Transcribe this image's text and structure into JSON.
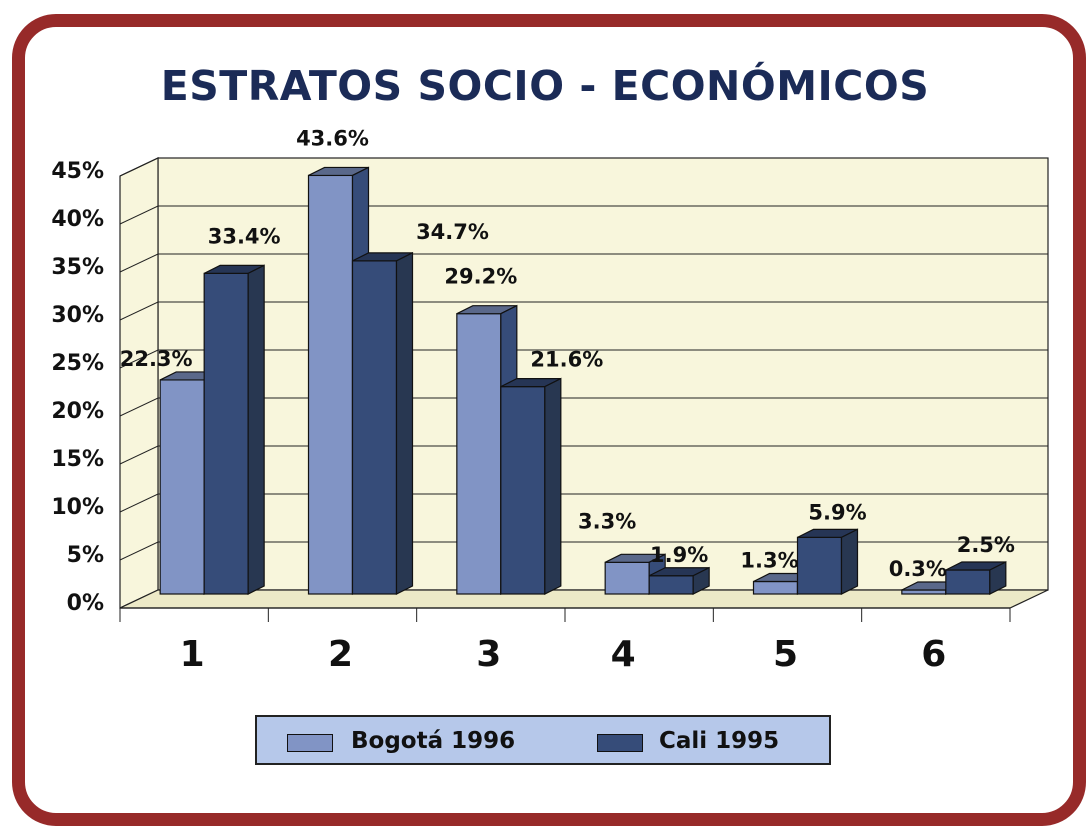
{
  "title": "ESTRATOS SOCIO - ECONÓMICOS",
  "colors": {
    "frame": "#972a29",
    "title": "#1b2b57",
    "wall": "#f8f6dc",
    "floor": "#ece9c7",
    "bogota": "#8194c5",
    "cali": "#364c79",
    "legend_bg": "#b6c8ea"
  },
  "chart_data": {
    "type": "bar",
    "style": "3d-clustered",
    "categories": [
      "1",
      "2",
      "3",
      "4",
      "5",
      "6"
    ],
    "series": [
      {
        "name": "Bogotá 1996",
        "values": [
          22.3,
          43.6,
          29.2,
          3.3,
          1.3,
          0.3
        ],
        "labels": [
          "22.3%",
          "43.6%",
          "29.2%",
          "3.3%",
          "1.3%",
          "0.3%"
        ]
      },
      {
        "name": "Cali 1995",
        "values": [
          33.4,
          34.7,
          21.6,
          1.9,
          5.9,
          2.5
        ],
        "labels": [
          "33.4%",
          "34.7%",
          "21.6%",
          "1.9%",
          "5.9%",
          "2.5%"
        ]
      }
    ],
    "y_ticks": [
      "0%",
      "5%",
      "10%",
      "15%",
      "20%",
      "25%",
      "30%",
      "35%",
      "40%",
      "45%"
    ],
    "ylim": [
      0,
      45
    ],
    "y_step": 5,
    "grid": true,
    "legend_position": "bottom"
  }
}
